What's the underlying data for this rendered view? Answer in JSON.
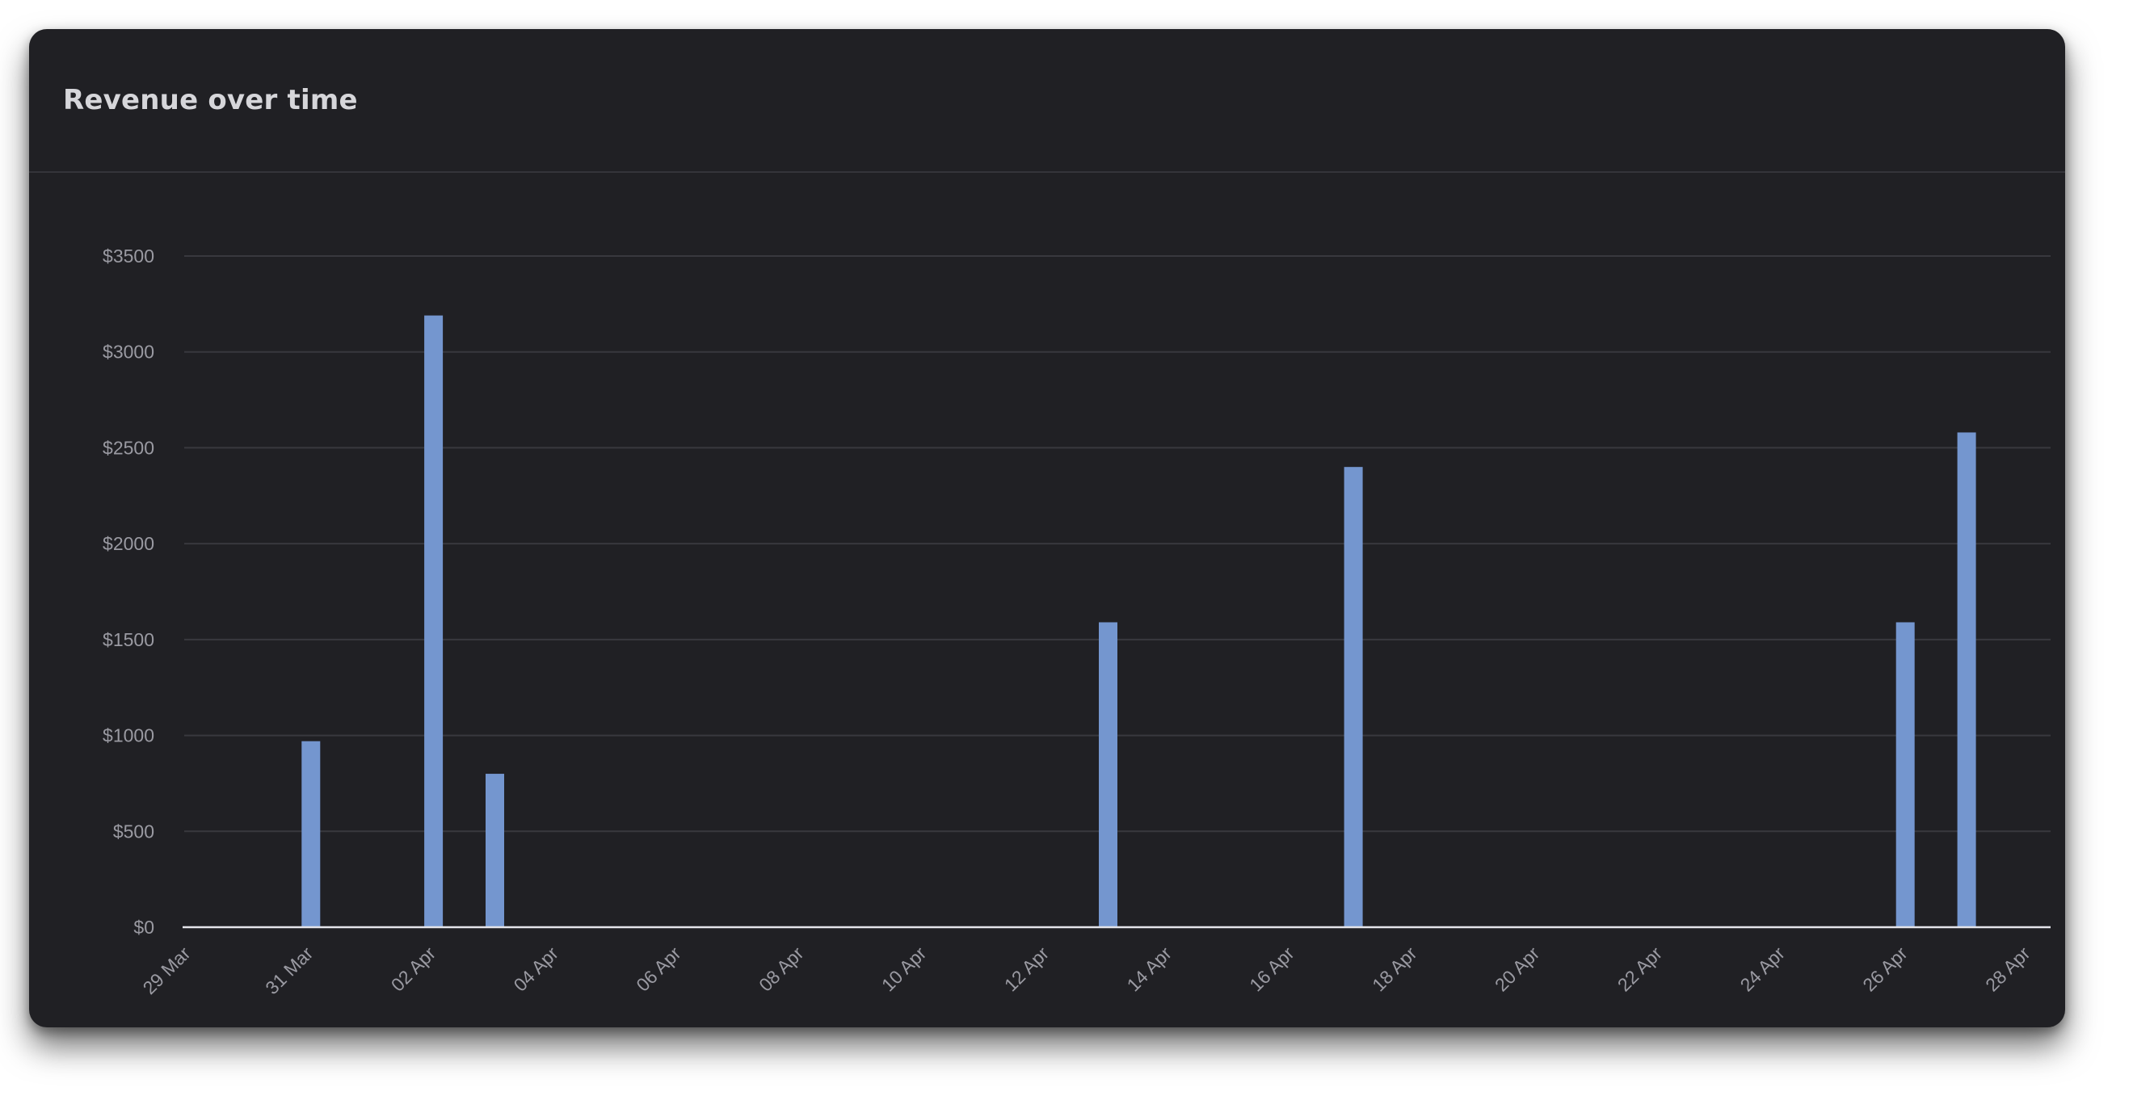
{
  "card": {
    "title": "Revenue over time"
  },
  "chart_data": {
    "type": "bar",
    "title": "Revenue over time",
    "xlabel": "",
    "ylabel": "",
    "x_axis": {
      "kind": "date",
      "start": "2024-03-29",
      "end": "2024-04-28",
      "ticks": [
        "29 Mar",
        "31 Mar",
        "02 Apr",
        "04 Apr",
        "06 Apr",
        "08 Apr",
        "10 Apr",
        "12 Apr",
        "14 Apr",
        "16 Apr",
        "18 Apr",
        "20 Apr",
        "22 Apr",
        "24 Apr",
        "26 Apr",
        "28 Apr"
      ],
      "tick_dates": [
        "2024-03-29",
        "2024-03-31",
        "2024-04-02",
        "2024-04-04",
        "2024-04-06",
        "2024-04-08",
        "2024-04-10",
        "2024-04-12",
        "2024-04-14",
        "2024-04-16",
        "2024-04-18",
        "2024-04-20",
        "2024-04-22",
        "2024-04-24",
        "2024-04-26",
        "2024-04-28"
      ]
    },
    "y_axis": {
      "ylim": [
        0,
        3500
      ],
      "ticks": [
        0,
        500,
        1000,
        1500,
        2000,
        2500,
        3000,
        3500
      ],
      "tick_labels": [
        "$0",
        "$500",
        "$1000",
        "$1500",
        "$2000",
        "$2500",
        "$3000",
        "$3500"
      ]
    },
    "grid": true,
    "legend": "none",
    "bar_color": "#7496cf",
    "series": [
      {
        "values": [
          {
            "date": "2024-03-31",
            "value": 970
          },
          {
            "date": "2024-04-02",
            "value": 3190
          },
          {
            "date": "2024-04-03",
            "value": 800
          },
          {
            "date": "2024-04-13",
            "value": 1590
          },
          {
            "date": "2024-04-17",
            "value": 2400
          },
          {
            "date": "2024-04-26",
            "value": 1590
          },
          {
            "date": "2024-04-27",
            "value": 2580
          }
        ]
      }
    ]
  }
}
